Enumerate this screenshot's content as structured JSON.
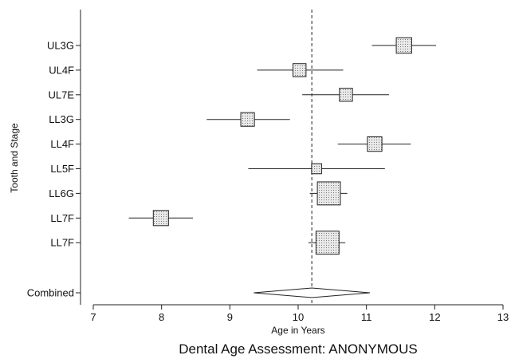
{
  "chart_data": {
    "type": "forest",
    "title": "Dental Age Assessment: ANONYMOUS",
    "xlabel": "Age in Years",
    "ylabel": "Tooth and Stage",
    "xlim": [
      7,
      13
    ],
    "xticks": [
      "7",
      "8",
      "9",
      "10",
      "11",
      "12",
      "13"
    ],
    "reference_line": 10.2,
    "grid": false,
    "legend": "none",
    "rows": [
      {
        "label": "UL3G",
        "estimate": 11.55,
        "ci_low": 11.08,
        "ci_high": 12.02,
        "weight": 0.3
      },
      {
        "label": "UL4F",
        "estimate": 10.02,
        "ci_low": 9.4,
        "ci_high": 10.66,
        "weight": 0.22
      },
      {
        "label": "UL7E",
        "estimate": 10.7,
        "ci_low": 10.06,
        "ci_high": 11.33,
        "weight": 0.22
      },
      {
        "label": "LL3G",
        "estimate": 9.26,
        "ci_low": 8.66,
        "ci_high": 9.88,
        "weight": 0.24
      },
      {
        "label": "LL4F",
        "estimate": 11.12,
        "ci_low": 10.58,
        "ci_high": 11.65,
        "weight": 0.27
      },
      {
        "label": "LL5F",
        "estimate": 10.27,
        "ci_low": 9.27,
        "ci_high": 11.27,
        "weight": 0.12
      },
      {
        "label": "LL6G",
        "estimate": 10.45,
        "ci_low": 10.17,
        "ci_high": 10.72,
        "weight": 0.55
      },
      {
        "label": "LL7F",
        "estimate": 7.99,
        "ci_low": 7.52,
        "ci_high": 8.46,
        "weight": 0.29
      },
      {
        "label": "LL7F",
        "estimate": 10.43,
        "ci_low": 10.15,
        "ci_high": 10.69,
        "weight": 0.55
      }
    ],
    "combined": {
      "label": "Combined",
      "estimate": 10.2,
      "ci_low": 9.35,
      "ci_high": 11.05
    }
  }
}
